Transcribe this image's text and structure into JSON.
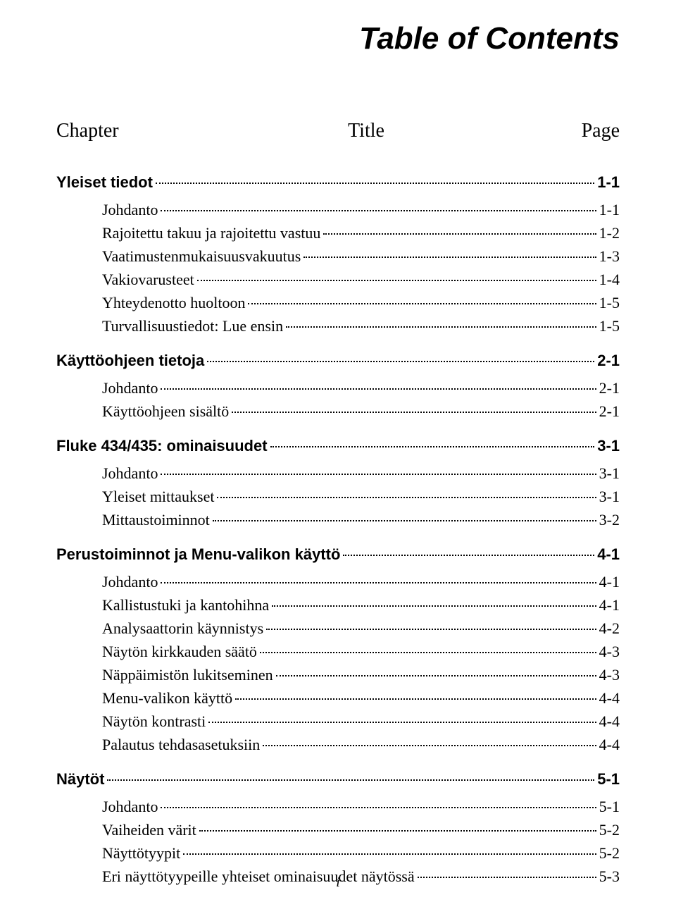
{
  "title": "Table of Contents",
  "header": {
    "chapter": "Chapter",
    "title": "Title",
    "page": "Page"
  },
  "chapters": [
    {
      "label": "Yleiset tiedot",
      "page": "1-1",
      "items": [
        {
          "label": "Johdanto",
          "page": "1-1"
        },
        {
          "label": "Rajoitettu takuu ja rajoitettu vastuu",
          "page": "1-2"
        },
        {
          "label": "Vaatimustenmukaisuusvakuutus",
          "page": "1-3"
        },
        {
          "label": "Vakiovarusteet",
          "page": "1-4"
        },
        {
          "label": "Yhteydenotto huoltoon",
          "page": "1-5"
        },
        {
          "label": "Turvallisuustiedot: Lue ensin",
          "page": "1-5"
        }
      ]
    },
    {
      "label": "Käyttöohjeen tietoja",
      "page": "2-1",
      "items": [
        {
          "label": "Johdanto",
          "page": "2-1"
        },
        {
          "label": "Käyttöohjeen sisältö",
          "page": "2-1"
        }
      ]
    },
    {
      "label": "Fluke 434/435: ominaisuudet",
      "page": "3-1",
      "items": [
        {
          "label": "Johdanto",
          "page": "3-1"
        },
        {
          "label": "Yleiset mittaukset",
          "page": "3-1"
        },
        {
          "label": "Mittaustoiminnot",
          "page": "3-2"
        }
      ]
    },
    {
      "label": "Perustoiminnot ja Menu-valikon käyttö",
      "page": "4-1",
      "items": [
        {
          "label": "Johdanto",
          "page": "4-1"
        },
        {
          "label": "Kallistustuki ja kantohihna",
          "page": "4-1"
        },
        {
          "label": "Analysaattorin käynnistys",
          "page": "4-2"
        },
        {
          "label": "Näytön kirkkauden säätö",
          "page": "4-3"
        },
        {
          "label": "Näppäimistön lukitseminen",
          "page": "4-3"
        },
        {
          "label": "Menu-valikon käyttö",
          "page": "4-4"
        },
        {
          "label": "Näytön kontrasti",
          "page": "4-4"
        },
        {
          "label": "Palautus tehdasasetuksiin",
          "page": "4-4"
        }
      ]
    },
    {
      "label": "Näytöt",
      "page": "5-1",
      "items": [
        {
          "label": "Johdanto",
          "page": "5-1"
        },
        {
          "label": "Vaiheiden värit",
          "page": "5-2"
        },
        {
          "label": "Näyttötyypit",
          "page": "5-2"
        },
        {
          "label": "Eri näyttötyypeille yhteiset ominaisuudet näytössä",
          "page": "5-3"
        }
      ]
    }
  ],
  "footer": "i"
}
